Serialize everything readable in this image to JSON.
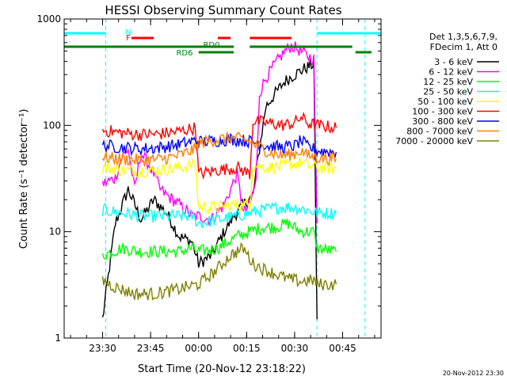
{
  "chart_data": {
    "type": "line",
    "title": "HESSI Observing Summary Count Rates",
    "xlabel": "Start Time (20-Nov-12 23:18:22)",
    "ylabel": "Count Rate (s⁻¹ detector⁻¹)",
    "y_scale": "log",
    "ylim": [
      1,
      1000
    ],
    "xlim": [
      "23:18",
      "00:57"
    ],
    "x_ticks": [
      "23:30",
      "23:45",
      "00:00",
      "00:15",
      "00:30",
      "00:45"
    ],
    "y_ticks": [
      "1",
      "10",
      "100",
      "1000"
    ],
    "grid": false,
    "legend_position": "right",
    "legend_header": [
      "Det 1,3,5,6,7,9,",
      "FDecim 1, Att 0"
    ],
    "timestamp": "20-Nov-2012 23:30",
    "flags": {
      "N": {
        "label": "N",
        "color": "#00ffff"
      },
      "F": {
        "label": "F",
        "color": "#ff0000"
      },
      "RD0": {
        "label": "RD0",
        "color": "#008000"
      },
      "RD6": {
        "label": "RD6",
        "color": "#008000"
      }
    },
    "series": [
      {
        "name": "3 - 6 keV",
        "color": "#000000",
        "points": [
          [
            "23:30",
            1.5
          ],
          [
            "23:34",
            12
          ],
          [
            "23:38",
            25
          ],
          [
            "23:42",
            13
          ],
          [
            "23:46",
            20
          ],
          [
            "23:50",
            15
          ],
          [
            "23:54",
            9
          ],
          [
            "23:58",
            8
          ],
          [
            "00:00",
            5
          ],
          [
            "00:04",
            6
          ],
          [
            "00:08",
            10
          ],
          [
            "00:11",
            14
          ],
          [
            "00:14",
            18
          ],
          [
            "00:17",
            22
          ],
          [
            "00:19",
            60
          ],
          [
            "00:21",
            150
          ],
          [
            "00:24",
            200
          ],
          [
            "00:27",
            260
          ],
          [
            "00:30",
            300
          ],
          [
            "00:33",
            340
          ],
          [
            "00:36",
            380
          ],
          [
            "00:37",
            1.5
          ]
        ]
      },
      {
        "name": "6 - 12 keV",
        "color": "#ff00ff",
        "points": [
          [
            "23:30",
            28
          ],
          [
            "23:34",
            32
          ],
          [
            "23:36",
            50
          ],
          [
            "23:38",
            60
          ],
          [
            "23:40",
            25
          ],
          [
            "23:42",
            55
          ],
          [
            "23:44",
            45
          ],
          [
            "23:46",
            35
          ],
          [
            "23:48",
            25
          ],
          [
            "23:50",
            22
          ],
          [
            "23:54",
            18
          ],
          [
            "23:58",
            14
          ],
          [
            "00:00",
            14
          ],
          [
            "00:04",
            13
          ],
          [
            "00:08",
            18
          ],
          [
            "00:10",
            25
          ],
          [
            "00:12",
            35
          ],
          [
            "00:14",
            15
          ],
          [
            "00:16",
            18
          ],
          [
            "00:18",
            30
          ],
          [
            "00:19",
            200
          ],
          [
            "00:21",
            280
          ],
          [
            "00:24",
            380
          ],
          [
            "00:27",
            500
          ],
          [
            "00:29",
            560
          ],
          [
            "00:31",
            520
          ],
          [
            "00:34",
            450
          ],
          [
            "00:36",
            420
          ],
          [
            "00:37",
            12
          ]
        ]
      },
      {
        "name": "12 - 25 keV",
        "color": "#00ff00",
        "points": [
          [
            "23:30",
            6
          ],
          [
            "23:36",
            7
          ],
          [
            "23:42",
            6.5
          ],
          [
            "23:48",
            6.5
          ],
          [
            "23:54",
            6.5
          ],
          [
            "23:58",
            7
          ],
          [
            "00:00",
            6.5
          ],
          [
            "00:06",
            7
          ],
          [
            "00:12",
            9
          ],
          [
            "00:16",
            10
          ],
          [
            "00:20",
            11
          ],
          [
            "00:24",
            11
          ],
          [
            "00:28",
            12
          ],
          [
            "00:32",
            10
          ],
          [
            "00:36",
            10
          ],
          [
            "00:37",
            7
          ],
          [
            "00:43",
            6.5
          ]
        ]
      },
      {
        "name": "25 - 50 keV",
        "color": "#00ffff",
        "points": [
          [
            "23:30",
            16
          ],
          [
            "23:36",
            15
          ],
          [
            "23:42",
            14
          ],
          [
            "23:48",
            14
          ],
          [
            "23:54",
            14
          ],
          [
            "23:58",
            14
          ],
          [
            "00:00",
            12
          ],
          [
            "00:06",
            13
          ],
          [
            "00:12",
            14
          ],
          [
            "00:16",
            15
          ],
          [
            "00:20",
            16
          ],
          [
            "00:26",
            17
          ],
          [
            "00:30",
            17
          ],
          [
            "00:34",
            16
          ],
          [
            "00:37",
            15
          ],
          [
            "00:43",
            15
          ]
        ]
      },
      {
        "name": "50 - 100 keV",
        "color": "#ffff00",
        "points": [
          [
            "23:30",
            40
          ],
          [
            "23:36",
            38
          ],
          [
            "23:42",
            37
          ],
          [
            "23:48",
            38
          ],
          [
            "23:54",
            40
          ],
          [
            "23:59",
            43
          ],
          [
            "00:00",
            17
          ],
          [
            "00:06",
            17
          ],
          [
            "00:12",
            18
          ],
          [
            "00:16",
            18
          ],
          [
            "00:17",
            42
          ],
          [
            "00:22",
            40
          ],
          [
            "00:26",
            41
          ],
          [
            "00:30",
            43
          ],
          [
            "00:32",
            45
          ],
          [
            "00:34",
            42
          ],
          [
            "00:37",
            40
          ],
          [
            "00:43",
            39
          ]
        ]
      },
      {
        "name": "100 - 300 keV",
        "color": "#ff0000",
        "points": [
          [
            "23:30",
            90
          ],
          [
            "23:36",
            85
          ],
          [
            "23:42",
            82
          ],
          [
            "23:48",
            83
          ],
          [
            "23:54",
            88
          ],
          [
            "23:59",
            95
          ],
          [
            "00:00",
            35
          ],
          [
            "00:06",
            38
          ],
          [
            "00:12",
            40
          ],
          [
            "00:16",
            35
          ],
          [
            "00:17",
            110
          ],
          [
            "00:22",
            105
          ],
          [
            "00:26",
            100
          ],
          [
            "00:30",
            105
          ],
          [
            "00:32",
            120
          ],
          [
            "00:34",
            105
          ],
          [
            "00:37",
            100
          ],
          [
            "00:43",
            95
          ]
        ]
      },
      {
        "name": "300 - 800 keV",
        "color": "#0000ff",
        "points": [
          [
            "23:30",
            65
          ],
          [
            "23:36",
            62
          ],
          [
            "23:42",
            60
          ],
          [
            "23:48",
            62
          ],
          [
            "23:54",
            66
          ],
          [
            "23:59",
            72
          ],
          [
            "00:00",
            70
          ],
          [
            "00:06",
            72
          ],
          [
            "00:10",
            74
          ],
          [
            "00:14",
            72
          ],
          [
            "00:17",
            70
          ],
          [
            "00:22",
            64
          ],
          [
            "00:26",
            62
          ],
          [
            "00:30",
            64
          ],
          [
            "00:32",
            72
          ],
          [
            "00:34",
            63
          ],
          [
            "00:37",
            58
          ],
          [
            "00:43",
            56
          ]
        ]
      },
      {
        "name": "800 - 7000 keV",
        "color": "#ff8000",
        "points": [
          [
            "23:30",
            50
          ],
          [
            "23:36",
            48
          ],
          [
            "23:42",
            47
          ],
          [
            "23:48",
            48
          ],
          [
            "23:54",
            52
          ],
          [
            "23:59",
            60
          ],
          [
            "00:00",
            68
          ],
          [
            "00:06",
            74
          ],
          [
            "00:10",
            76
          ],
          [
            "00:14",
            74
          ],
          [
            "00:17",
            68
          ],
          [
            "00:22",
            56
          ],
          [
            "00:26",
            52
          ],
          [
            "00:30",
            54
          ],
          [
            "00:32",
            58
          ],
          [
            "00:34",
            52
          ],
          [
            "00:37",
            50
          ],
          [
            "00:43",
            48
          ]
        ]
      },
      {
        "name": "7000 - 20000 keV",
        "color": "#808000",
        "points": [
          [
            "23:30",
            3.5
          ],
          [
            "23:34",
            3.0
          ],
          [
            "23:40",
            2.6
          ],
          [
            "23:46",
            2.6
          ],
          [
            "23:52",
            2.8
          ],
          [
            "23:56",
            3.0
          ],
          [
            "00:00",
            3.2
          ],
          [
            "00:05",
            4.2
          ],
          [
            "00:10",
            6.0
          ],
          [
            "00:14",
            7.0
          ],
          [
            "00:17",
            5.0
          ],
          [
            "00:20",
            4.5
          ],
          [
            "00:24",
            4.0
          ],
          [
            "00:28",
            3.6
          ],
          [
            "00:32",
            3.4
          ],
          [
            "00:36",
            3.5
          ],
          [
            "00:37",
            3.2
          ],
          [
            "00:43",
            3.2
          ]
        ]
      }
    ]
  }
}
